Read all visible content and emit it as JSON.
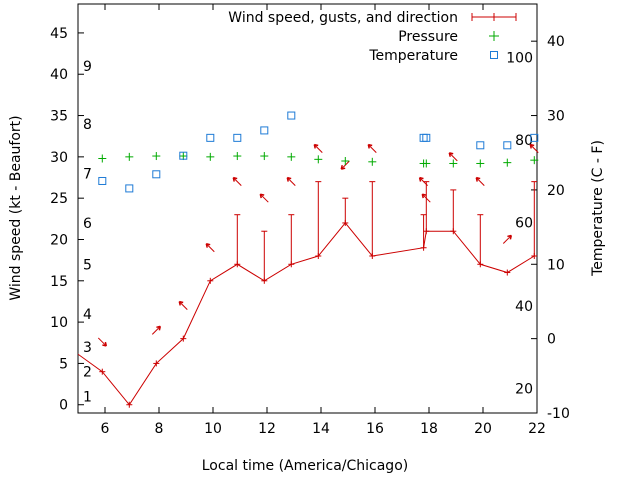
{
  "chart_data": {
    "type": "line",
    "xlabel": "Local time (America/Chicago)",
    "ylabel_left": "Wind speed (kt - Beaufort)",
    "ylabel_right": "Temperature (C - F)",
    "xlim": [
      5,
      22
    ],
    "ylim_left": [
      -1,
      48.5
    ],
    "ylim_right": [
      -10,
      45
    ],
    "x_ticks": [
      6,
      8,
      10,
      12,
      14,
      16,
      18,
      20,
      22
    ],
    "y_left_ticks": [
      0,
      5,
      10,
      15,
      20,
      25,
      30,
      35,
      40,
      45
    ],
    "y_right_ticks": [
      -10,
      0,
      10,
      20,
      30,
      40
    ],
    "beaufort_labels": [
      {
        "text": "1",
        "y": 1.0
      },
      {
        "text": "2",
        "y": 4.0
      },
      {
        "text": "3",
        "y": 7.0
      },
      {
        "text": "4",
        "y": 11.0
      },
      {
        "text": "5",
        "y": 17.0
      },
      {
        "text": "6",
        "y": 22.0
      },
      {
        "text": "7",
        "y": 28.0
      },
      {
        "text": "8",
        "y": 34.0
      },
      {
        "text": "9",
        "y": 41.0
      }
    ],
    "fahrenheit_labels": [
      {
        "text": "20",
        "t": -6.7
      },
      {
        "text": "40",
        "t": 4.4
      },
      {
        "text": "60",
        "t": 15.6
      },
      {
        "text": "80",
        "t": 26.7
      },
      {
        "text": "100",
        "t": 37.8
      }
    ],
    "legend": {
      "position": "top-right",
      "entries": [
        "Wind speed, gusts, and direction",
        "Pressure",
        "Temperature"
      ]
    },
    "colors": {
      "wind": "#cc0000",
      "pressure": "#00aa00",
      "temperature": "#1e7bd6",
      "axis": "#000000"
    },
    "series": [
      {
        "name": "Wind speed, gusts, and direction",
        "points": [
          {
            "x": 4.2,
            "y": 8
          },
          {
            "x": 5.9,
            "y": 4
          },
          {
            "x": 6.9,
            "y": 0
          },
          {
            "x": 7.9,
            "y": 5
          },
          {
            "x": 8.9,
            "y": 8
          },
          {
            "x": 9.9,
            "y": 15
          },
          {
            "x": 10.9,
            "y": 17,
            "gust": 23
          },
          {
            "x": 11.9,
            "y": 15,
            "gust": 21
          },
          {
            "x": 12.9,
            "y": 17,
            "gust": 23
          },
          {
            "x": 13.9,
            "y": 18,
            "gust": 27
          },
          {
            "x": 14.9,
            "y": 22,
            "gust": 25
          },
          {
            "x": 15.9,
            "y": 18,
            "gust": 27
          },
          {
            "x": 17.8,
            "y": 19,
            "gust": 23
          },
          {
            "x": 17.9,
            "y": 21,
            "gust": 27
          },
          {
            "x": 18.9,
            "y": 21,
            "gust": 26
          },
          {
            "x": 19.9,
            "y": 17,
            "gust": 23
          },
          {
            "x": 20.9,
            "y": 16
          },
          {
            "x": 21.9,
            "y": 18,
            "gust": 27
          }
        ],
        "direction_arrows": [
          {
            "x": 5.9,
            "y": 7.6,
            "dx": 1,
            "dy": 1
          },
          {
            "x": 7.9,
            "y": 9.0,
            "dx": 1,
            "dy": -1
          },
          {
            "x": 8.9,
            "y": 12.0,
            "dx": -1,
            "dy": -1
          },
          {
            "x": 9.9,
            "y": 19.0,
            "dx": -1,
            "dy": -1
          },
          {
            "x": 10.9,
            "y": 27.0,
            "dx": -1,
            "dy": -1
          },
          {
            "x": 11.9,
            "y": 25.0,
            "dx": -1,
            "dy": -1
          },
          {
            "x": 12.9,
            "y": 27.0,
            "dx": -1,
            "dy": -1
          },
          {
            "x": 13.9,
            "y": 31.0,
            "dx": -1,
            "dy": -1
          },
          {
            "x": 14.9,
            "y": 29.0,
            "dx": -1,
            "dy": 1
          },
          {
            "x": 15.9,
            "y": 31.0,
            "dx": -1,
            "dy": -1
          },
          {
            "x": 17.8,
            "y": 27.0,
            "dx": -1,
            "dy": -1
          },
          {
            "x": 17.9,
            "y": 25.0,
            "dx": -1,
            "dy": -1
          },
          {
            "x": 18.9,
            "y": 30.0,
            "dx": -1,
            "dy": -1
          },
          {
            "x": 19.9,
            "y": 27.0,
            "dx": -1,
            "dy": -1
          },
          {
            "x": 20.9,
            "y": 20.0,
            "dx": 1,
            "dy": -1
          },
          {
            "x": 21.9,
            "y": 31.0,
            "dx": -1,
            "dy": -1
          }
        ]
      },
      {
        "name": "Pressure",
        "points": [
          {
            "x": 5.9,
            "y": 29.8
          },
          {
            "x": 6.9,
            "y": 30.0
          },
          {
            "x": 7.9,
            "y": 30.1
          },
          {
            "x": 8.9,
            "y": 30.1
          },
          {
            "x": 9.9,
            "y": 30.0
          },
          {
            "x": 10.9,
            "y": 30.1
          },
          {
            "x": 11.9,
            "y": 30.1
          },
          {
            "x": 12.9,
            "y": 30.0
          },
          {
            "x": 13.9,
            "y": 29.7
          },
          {
            "x": 14.9,
            "y": 29.5
          },
          {
            "x": 15.9,
            "y": 29.4
          },
          {
            "x": 17.8,
            "y": 29.2
          },
          {
            "x": 17.9,
            "y": 29.2
          },
          {
            "x": 18.9,
            "y": 29.2
          },
          {
            "x": 19.9,
            "y": 29.2
          },
          {
            "x": 20.9,
            "y": 29.3
          },
          {
            "x": 21.9,
            "y": 29.6
          }
        ]
      },
      {
        "name": "Temperature",
        "points": [
          {
            "x": 5.9,
            "y": 21.2
          },
          {
            "x": 6.9,
            "y": 20.2
          },
          {
            "x": 7.9,
            "y": 22.1
          },
          {
            "x": 8.9,
            "y": 24.6
          },
          {
            "x": 9.9,
            "y": 27.0
          },
          {
            "x": 10.9,
            "y": 27.0
          },
          {
            "x": 11.9,
            "y": 28.0
          },
          {
            "x": 12.9,
            "y": 30.0
          },
          {
            "x": 17.8,
            "y": 27.0
          },
          {
            "x": 17.9,
            "y": 27.0
          },
          {
            "x": 19.9,
            "y": 26.0
          },
          {
            "x": 20.9,
            "y": 26.0
          },
          {
            "x": 21.9,
            "y": 27.0
          }
        ]
      }
    ]
  }
}
